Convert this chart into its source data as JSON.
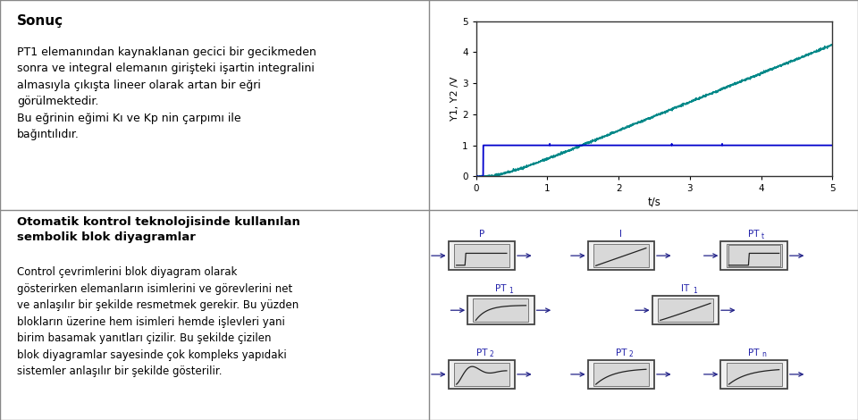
{
  "title_top_left": "Sonuç",
  "text_top_left": "PT1 elemanından kaynaklanan gecici bir gecikmeden\nsonra ve integral elemanın girişteki işartin integralini\nalmasıyla çıkışta lineer olarak artan bir eğri\ngörülmektedir.\nBu eğrinin eğimi Kı ve Kp nin çarpımı ile\nbağıntılıdır.",
  "text_bottom_left_title": "Otomatik kontrol teknolojisinde kullanılan\nsembolik blok diyagramlar",
  "text_bottom_left_body": "Control çevrimlerini blok diyagram olarak\ngösterirken elemanların isimlerini ve görevlerini net\nve anlaşılır bir şekilde resmetmek gerekir. Bu yüzden\nblokların üzerine hem isimleri hemde işlevleri yani\nbirim basamak yanıtları çizilir. Bu şekilde çizilen\nblok diyagramlar sayesinde çok kompleks yapıdaki\nsistemler anlaşılır bir şekilde gösterilir.",
  "plot_ylabel": "Y1, Y2 /V",
  "plot_xlabel": "t/s",
  "plot_xlim": [
    0,
    5
  ],
  "plot_ylim": [
    0,
    5
  ],
  "plot_yticks": [
    0,
    1,
    2,
    3,
    4,
    5
  ],
  "plot_xticks": [
    0,
    1,
    2,
    3,
    4,
    5
  ],
  "bg_color_bottom_right": "#a8bdd0",
  "bg_color_top": "#ffffff",
  "border_color": "#555555",
  "step_color": "#0000cc",
  "ramp_color": "#008888",
  "label_color": "#2222aa",
  "block_face": "#e0e0e0",
  "block_inner": "#cccccc",
  "arrow_color": "#222288",
  "fig_w": 9.6,
  "fig_h": 4.7,
  "dpi": 100
}
